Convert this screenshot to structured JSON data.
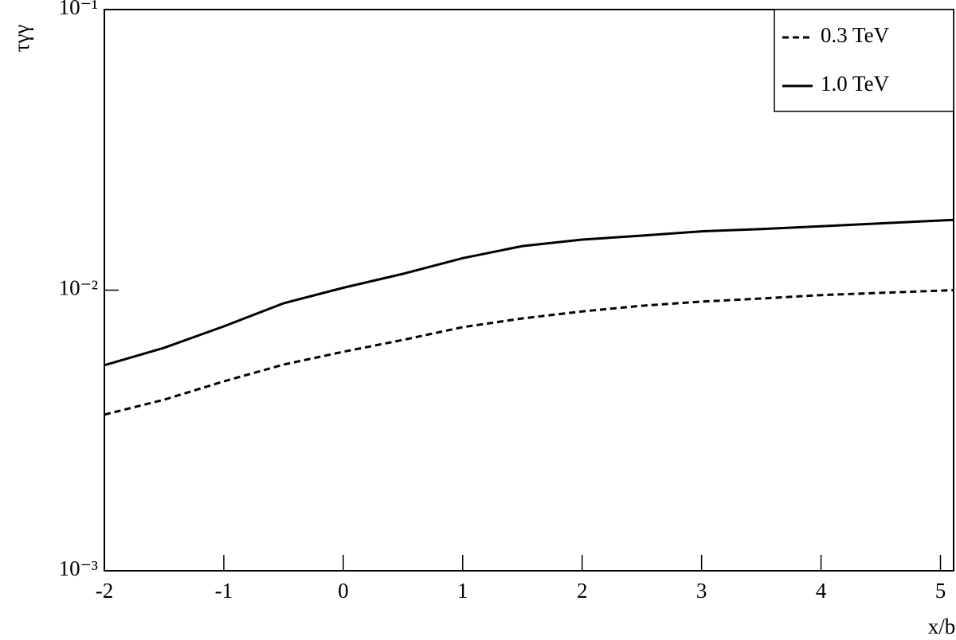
{
  "chart_data": {
    "type": "line",
    "x_label": "x/b",
    "y_label": "τγγ",
    "x": [
      -2,
      -1.5,
      -1,
      -0.5,
      0,
      0.5,
      1,
      1.5,
      2,
      2.5,
      3,
      3.5,
      4,
      4.5,
      5.11
    ],
    "series": [
      {
        "name": "0.3 TeV",
        "color": "#000000",
        "style": "dashed",
        "values": [
          0.0036,
          0.00407,
          0.00473,
          0.00543,
          0.00603,
          0.00665,
          0.00738,
          0.00793,
          0.0084,
          0.0088,
          0.0091,
          0.00934,
          0.0096,
          0.00978,
          0.01
        ]
      },
      {
        "name": "1.0 TeV",
        "color": "#000000",
        "style": "solid",
        "values": [
          0.0054,
          0.00623,
          0.00743,
          0.00898,
          0.0102,
          0.01143,
          0.013,
          0.01436,
          0.01514,
          0.01564,
          0.0162,
          0.0165,
          0.0169,
          0.0173,
          0.0178
        ]
      }
    ],
    "xlim": [
      -2,
      5.11
    ],
    "xticks": [
      -2,
      -1,
      0,
      1,
      2,
      3,
      4,
      5
    ],
    "ylim": [
      0.001,
      0.1
    ],
    "yticks": [
      {
        "value": 0.001,
        "label": "10⁻³"
      },
      {
        "value": 0.01,
        "label": "10⁻²"
      },
      {
        "value": 0.1,
        "label": "10⁻¹"
      }
    ],
    "log_y": true,
    "grid": false,
    "legend": "upper right"
  }
}
